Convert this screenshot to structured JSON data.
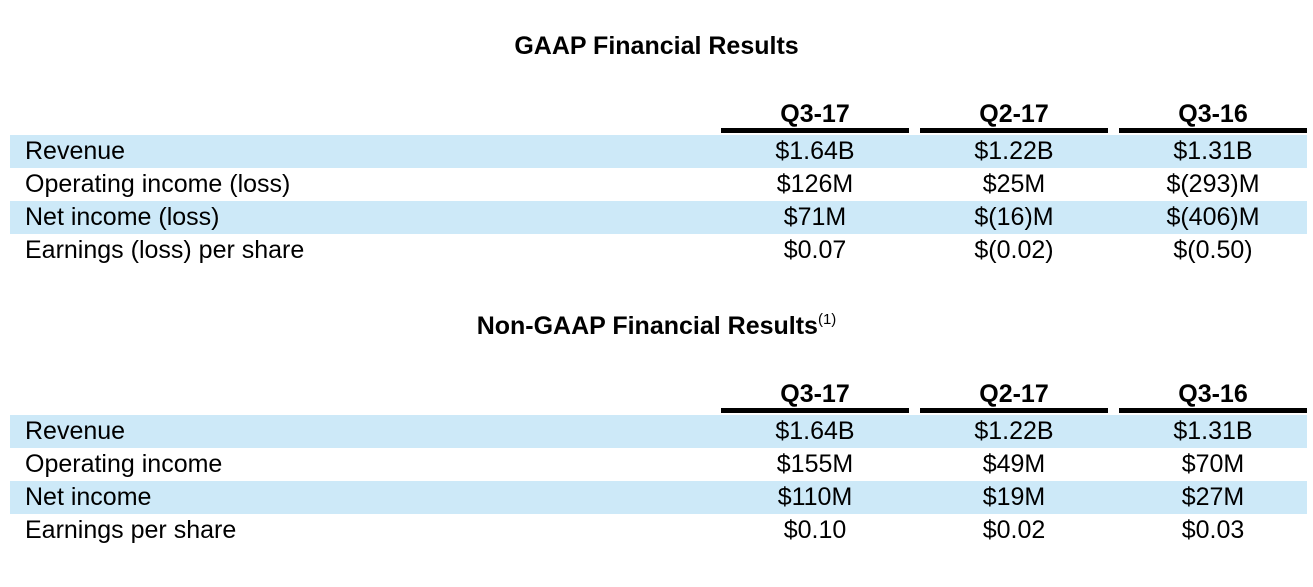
{
  "page": {
    "background_color": "#ffffff",
    "stripe_color": "#cde9f8",
    "underline_color": "#000000",
    "text_color": "#000000"
  },
  "tables": [
    {
      "title": "GAAP Financial Results",
      "title_superscript": "",
      "columns": [
        "Q3-17",
        "Q2-17",
        "Q3-16"
      ],
      "rows": [
        {
          "label": "Revenue",
          "values": [
            "$1.64B",
            "$1.22B",
            "$1.31B"
          ]
        },
        {
          "label": "Operating income (loss)",
          "values": [
            "$126M",
            "$25M",
            "$(293)M"
          ]
        },
        {
          "label": "Net income (loss)",
          "values": [
            "$71M",
            "$(16)M",
            "$(406)M"
          ]
        },
        {
          "label": "Earnings (loss) per share",
          "values": [
            "$0.07",
            "$(0.02)",
            "$(0.50)"
          ]
        }
      ]
    },
    {
      "title": "Non-GAAP Financial Results",
      "title_superscript": "(1)",
      "columns": [
        "Q3-17",
        "Q2-17",
        "Q3-16"
      ],
      "rows": [
        {
          "label": "Revenue",
          "values": [
            "$1.64B",
            "$1.22B",
            "$1.31B"
          ]
        },
        {
          "label": "Operating income",
          "values": [
            "$155M",
            "$49M",
            "$70M"
          ]
        },
        {
          "label": "Net income",
          "values": [
            "$110M",
            "$19M",
            "$27M"
          ]
        },
        {
          "label": "Earnings per share",
          "values": [
            "$0.10",
            "$0.02",
            "$0.03"
          ]
        }
      ]
    }
  ]
}
